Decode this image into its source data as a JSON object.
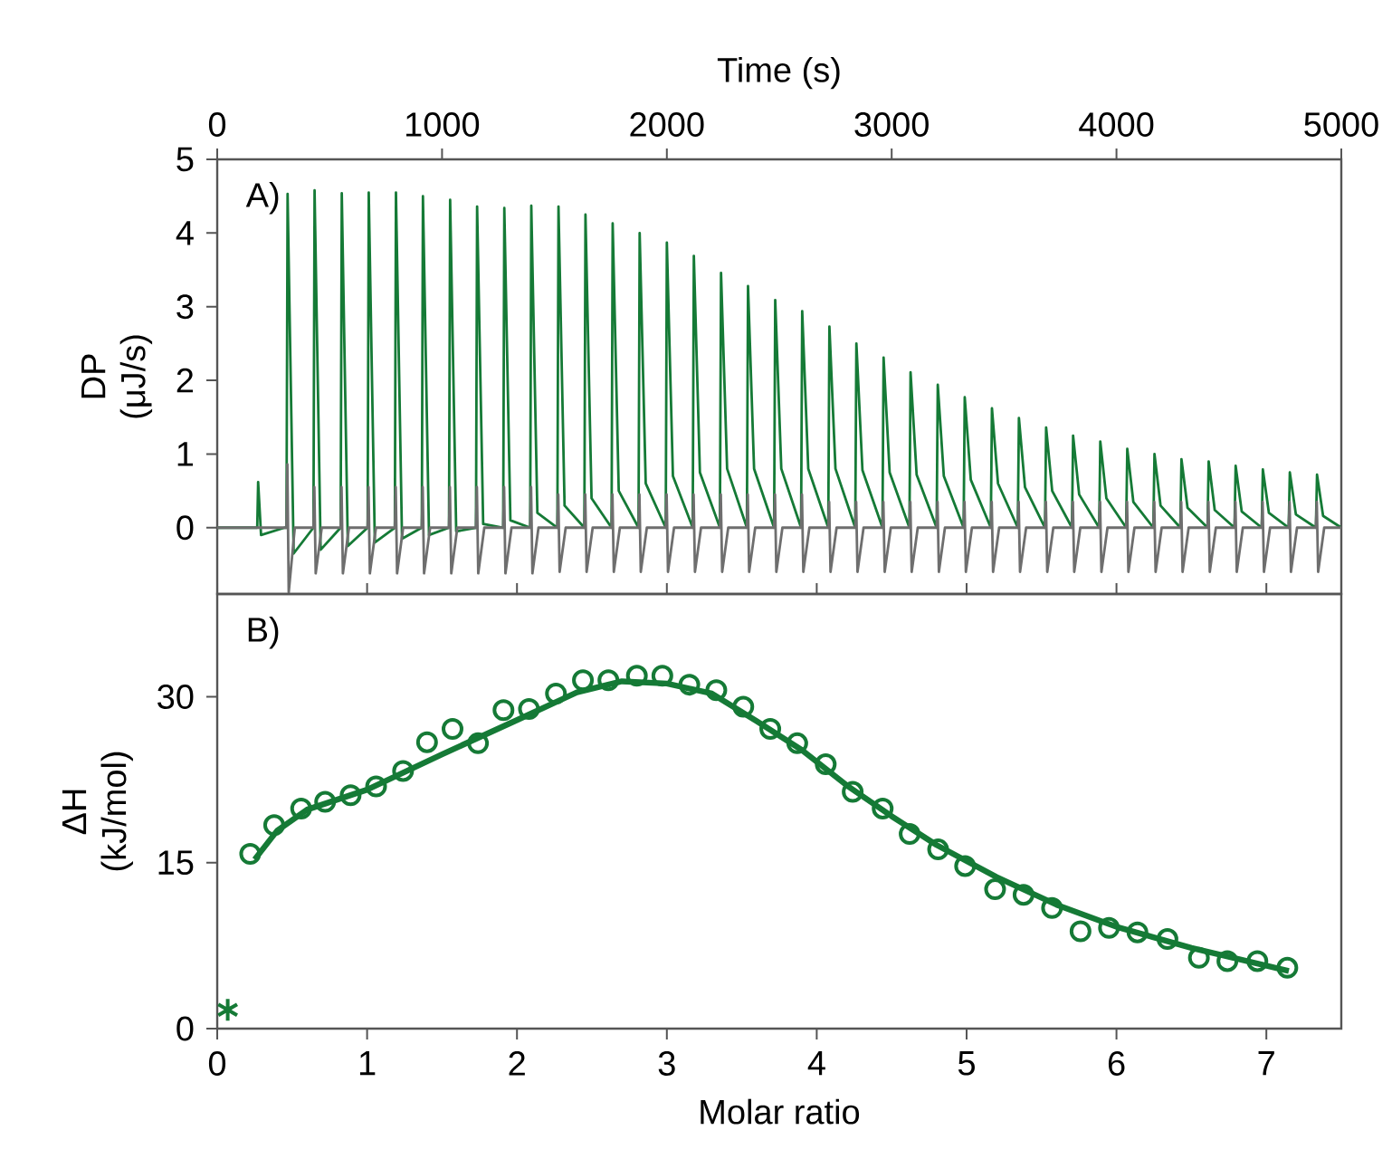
{
  "chart_data": [
    {
      "type": "line",
      "xlabel": "Time (s)",
      "ylabel": "DP (μJ/s)",
      "xlim": [
        0,
        5000
      ],
      "ylim": [
        -0.9,
        5
      ],
      "xticks": [
        0,
        1000,
        2000,
        3000,
        4000,
        5000
      ],
      "yticks": [
        0,
        1,
        2,
        3,
        4,
        5
      ],
      "marker": "none",
      "annotations": [
        "A)"
      ],
      "series": [
        {
          "color": "#157a36",
          "x": [
            0,
            178,
            182,
            195,
            300,
            308,
            313,
            340,
            428,
            433,
            460,
            549,
            554,
            581,
            669,
            674,
            701,
            790,
            795,
            822,
            910,
            915,
            942,
            1031,
            1036,
            1063,
            1151,
            1156,
            1183,
            1272,
            1277,
            1304,
            1392,
            1397,
            1424,
            1513,
            1518,
            1545,
            1633,
            1638,
            1665,
            1754,
            1759,
            1786,
            1874,
            1879,
            1906,
            1995,
            2000,
            2027,
            2115,
            2120,
            2147,
            2236,
            2241,
            2268,
            2356,
            2361,
            2388,
            2477,
            2482,
            2509,
            2597,
            2602,
            2629,
            2718,
            2723,
            2750,
            2838,
            2843,
            2870,
            2959,
            2964,
            2991,
            3079,
            3084,
            3111,
            3200,
            3205,
            3232,
            3320,
            3325,
            3352,
            3441,
            3446,
            3473,
            3561,
            3566,
            3593,
            3682,
            3687,
            3714,
            3802,
            3807,
            3834,
            3923,
            3928,
            3955,
            4043,
            4048,
            4075,
            4164,
            4169,
            4196,
            4284,
            4289,
            4316,
            4405,
            4410,
            4437,
            4525,
            4530,
            4557,
            4646,
            4651,
            4678,
            4766,
            4771,
            4798,
            4887,
            4892,
            4919,
            5000
          ],
          "values": [
            0,
            0,
            0.62,
            -0.1,
            0,
            0,
            4.53,
            -0.35,
            0,
            4.58,
            -0.3,
            0,
            4.54,
            -0.25,
            0,
            4.55,
            -0.2,
            0,
            4.55,
            -0.15,
            0,
            4.5,
            -0.1,
            0,
            4.45,
            -0.05,
            0,
            4.36,
            0.05,
            0,
            4.34,
            0.1,
            0,
            4.37,
            0.2,
            0,
            4.36,
            0.3,
            0,
            4.25,
            0.4,
            0,
            4.13,
            0.5,
            0,
            4.0,
            0.6,
            0,
            3.87,
            0.7,
            0,
            3.69,
            0.75,
            0,
            3.46,
            0.8,
            0,
            3.28,
            0.8,
            0,
            3.09,
            0.8,
            0,
            2.94,
            0.8,
            0,
            2.73,
            0.8,
            0,
            2.5,
            0.78,
            0,
            2.31,
            0.75,
            0,
            2.11,
            0.72,
            0,
            1.94,
            0.7,
            0,
            1.77,
            0.65,
            0,
            1.62,
            0.6,
            0,
            1.49,
            0.55,
            0,
            1.36,
            0.5,
            0,
            1.25,
            0.45,
            0,
            1.17,
            0.4,
            0,
            1.07,
            0.35,
            0,
            1.0,
            0.3,
            0,
            0.93,
            0.27,
            0,
            0.9,
            0.24,
            0,
            0.84,
            0.22,
            0,
            0.79,
            0.2,
            0,
            0.75,
            0.18,
            0,
            0.72,
            0.16,
            0
          ]
        },
        {
          "color": "#6e6e6e",
          "x": [
            0,
            308,
            312,
            318,
            345,
            428,
            432,
            438,
            465,
            549,
            553,
            559,
            586,
            669,
            673,
            679,
            706,
            790,
            794,
            800,
            827,
            910,
            914,
            920,
            947,
            1031,
            1035,
            1041,
            1068,
            1151,
            1155,
            1161,
            1188,
            1272,
            1276,
            1282,
            1309,
            1392,
            1396,
            1402,
            1429,
            1513,
            1517,
            1523,
            1550,
            1633,
            1637,
            1643,
            1670,
            1754,
            1758,
            1764,
            1791,
            1874,
            1878,
            1884,
            1911,
            1995,
            1999,
            2005,
            2032,
            2115,
            2119,
            2125,
            2152,
            2236,
            2240,
            2246,
            2273,
            2356,
            2360,
            2366,
            2393,
            2477,
            2481,
            2487,
            2514,
            2597,
            2601,
            2607,
            2634,
            2718,
            2722,
            2728,
            2755,
            2838,
            2842,
            2848,
            2875,
            2959,
            2963,
            2969,
            2996,
            3079,
            3083,
            3089,
            3116,
            3200,
            3204,
            3210,
            3237,
            3320,
            3324,
            3330,
            3357,
            3441,
            3445,
            3451,
            3478,
            3561,
            3565,
            3571,
            3598,
            3682,
            3686,
            3692,
            3719,
            3802,
            3806,
            3812,
            3839,
            3923,
            3927,
            3933,
            3960,
            4043,
            4047,
            4053,
            4080,
            4164,
            4168,
            4174,
            4201,
            4284,
            4288,
            4294,
            4321,
            4405,
            4409,
            4415,
            4442,
            4525,
            4529,
            4535,
            4562,
            4646,
            4650,
            4656,
            4683,
            4766,
            4770,
            4776,
            4803,
            4887,
            4891,
            4897,
            4924,
            5000
          ],
          "values": [
            0,
            0,
            0.86,
            -0.88,
            0,
            0,
            0.55,
            -0.62,
            0,
            0,
            0.55,
            -0.62,
            0,
            0,
            0.55,
            -0.62,
            0,
            0,
            0.55,
            -0.62,
            0,
            0,
            0.55,
            -0.62,
            0,
            0,
            0.55,
            -0.62,
            0,
            0,
            0.55,
            -0.62,
            0,
            0,
            0.55,
            -0.62,
            0,
            0,
            0.55,
            -0.62,
            0,
            0,
            0.45,
            -0.6,
            0,
            0,
            0.45,
            -0.6,
            0,
            0,
            0.45,
            -0.6,
            0,
            0,
            0.45,
            -0.6,
            0,
            0,
            0.45,
            -0.6,
            0,
            0,
            0.45,
            -0.6,
            0,
            0,
            0.45,
            -0.6,
            0,
            0,
            0.45,
            -0.6,
            0,
            0,
            0.45,
            -0.6,
            0,
            0,
            0.45,
            -0.6,
            0,
            0,
            0.35,
            -0.6,
            0,
            0,
            0.35,
            -0.6,
            0,
            0,
            0.35,
            -0.6,
            0,
            0,
            0.35,
            -0.6,
            0,
            0,
            0.35,
            -0.6,
            0,
            0,
            0.35,
            -0.6,
            0,
            0,
            0.35,
            -0.6,
            0,
            0,
            0.35,
            -0.6,
            0,
            0,
            0.35,
            -0.6,
            0,
            0,
            0.35,
            -0.6,
            0,
            0,
            0.35,
            -0.6,
            0,
            0,
            0.35,
            -0.6,
            0,
            0,
            0.35,
            -0.6,
            0,
            0,
            0.35,
            -0.6,
            0,
            0,
            0.35,
            -0.6,
            0,
            0,
            0.35,
            -0.6,
            0,
            0,
            0.35,
            -0.6,
            0,
            0,
            0.35,
            -0.6,
            0,
            0,
            0.35,
            -0.6,
            0,
            0
          ]
        }
      ]
    },
    {
      "type": "scatter",
      "xlabel": "Molar ratio",
      "ylabel": "ΔH (kJ/mol)",
      "xlim": [
        0,
        7.5
      ],
      "ylim": [
        0,
        39.3
      ],
      "xticks": [
        0,
        1,
        2,
        3,
        4,
        5,
        6,
        7
      ],
      "yticks": [
        0,
        15,
        30
      ],
      "marker": "circle",
      "annotations": [
        "B)"
      ],
      "series": [
        {
          "color": "#157a36",
          "x": [
            0.22,
            0.38,
            0.56,
            0.72,
            0.89,
            1.06,
            1.24,
            1.4,
            1.57,
            1.74,
            1.91,
            2.08,
            2.26,
            2.44,
            2.61,
            2.8,
            2.97,
            3.15,
            3.33,
            3.51,
            3.69,
            3.87,
            4.06,
            4.24,
            4.44,
            4.62,
            4.81,
            4.99,
            5.19,
            5.38,
            5.57,
            5.76,
            5.95,
            6.14,
            6.34,
            6.55,
            6.74,
            6.94,
            7.14
          ],
          "values": [
            15.8,
            18.4,
            19.9,
            20.5,
            21.1,
            21.9,
            23.3,
            25.9,
            27.1,
            25.8,
            28.8,
            28.9,
            30.3,
            31.5,
            31.5,
            31.9,
            31.9,
            31.1,
            30.6,
            29.1,
            27.1,
            25.8,
            23.9,
            21.4,
            19.9,
            17.6,
            16.2,
            14.7,
            12.6,
            12.1,
            10.9,
            8.8,
            9.1,
            8.7,
            8.1,
            6.4,
            6.1,
            6.1,
            5.5
          ]
        },
        {
          "color": "#157a36",
          "type": "line",
          "marker": "none",
          "x": [
            0.25,
            0.4,
            0.6,
            1,
            1.5,
            2,
            2.4,
            2.7,
            3.0,
            3.3,
            3.6,
            3.9,
            4.2,
            4.5,
            4.8,
            5.2,
            5.6,
            6.0,
            6.5,
            7.15
          ],
          "values": [
            15.3,
            17.9,
            19.8,
            21.6,
            24.8,
            27.9,
            30.4,
            31.4,
            31.2,
            30.3,
            27.8,
            25.2,
            22.0,
            19.2,
            16.6,
            13.7,
            11.2,
            9.2,
            7.3,
            5.2
          ]
        },
        {
          "color": "#157a36",
          "marker": "cross",
          "x": [
            0.07
          ],
          "values": [
            1.7
          ]
        }
      ]
    }
  ]
}
